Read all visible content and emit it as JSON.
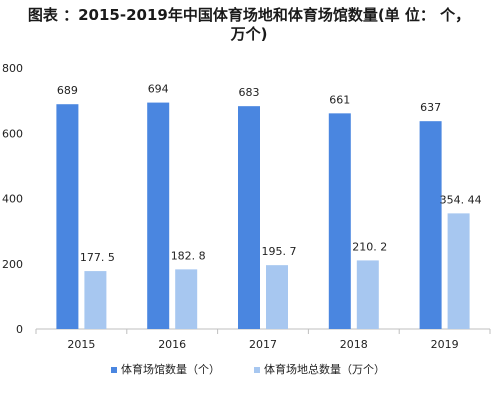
{
  "chart_data": {
    "type": "bar",
    "title_lines": [
      "图表 ：2015-2019年中国体育场地和体育场馆数量(单 位： 个，",
      "万个)"
    ],
    "categories": [
      "2015",
      "2016",
      "2017",
      "2018",
      "2019"
    ],
    "series": [
      {
        "name": "体育场馆数量（个）",
        "values": [
          689,
          694,
          683,
          661,
          637
        ],
        "labels": [
          "689",
          "694",
          "683",
          "661",
          "637"
        ],
        "color": "#4a86e0"
      },
      {
        "name": "体育场地总数量（万个）",
        "values": [
          177.5,
          182.8,
          195.7,
          210.2,
          354.44
        ],
        "labels": [
          "177. 5",
          "182. 8",
          "195. 7",
          "210. 2",
          "354. 44"
        ],
        "color": "#a7c7f0"
      }
    ],
    "yticks": [
      0,
      200,
      400,
      600,
      800
    ],
    "ylim": [
      0,
      800
    ],
    "grid": false,
    "legend_position": "bottom"
  }
}
